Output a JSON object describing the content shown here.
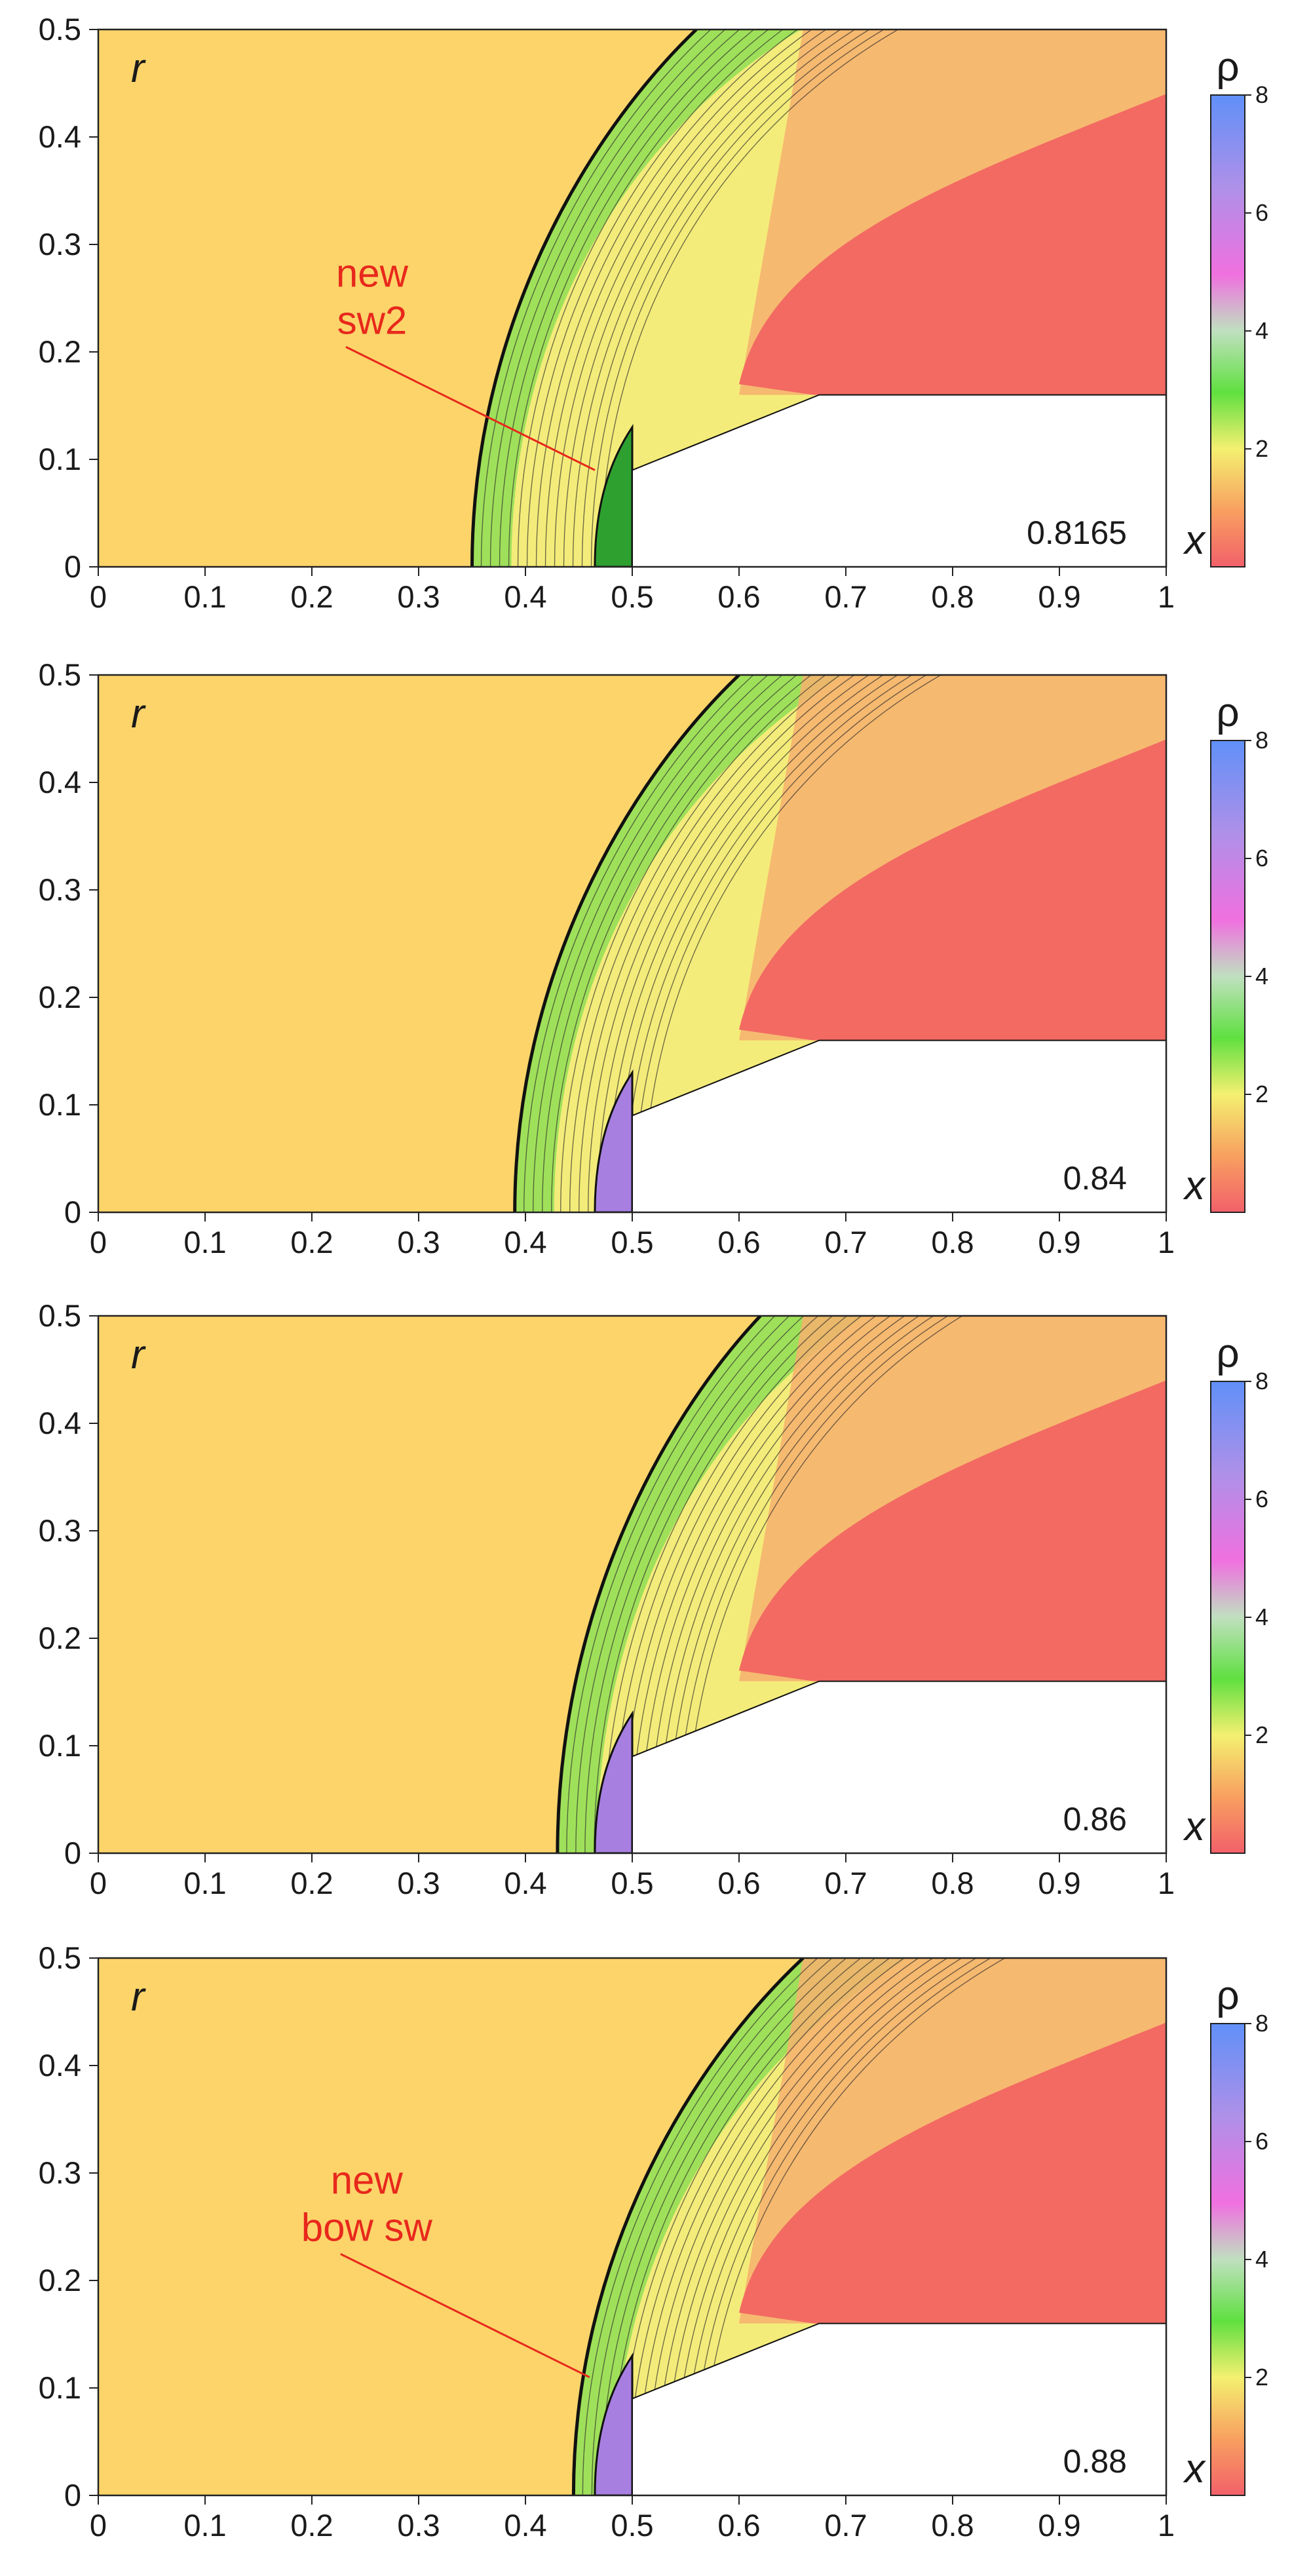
{
  "chart_data": [
    {
      "type": "contour",
      "time_label": "0.8165",
      "xlabel": "x",
      "ylabel": "r",
      "xlim": [
        0,
        1
      ],
      "ylim": [
        0,
        0.5
      ],
      "x_ticks": [
        "0",
        "0.1",
        "0.2",
        "0.3",
        "0.4",
        "0.5",
        "0.6",
        "0.7",
        "0.8",
        "0.9",
        "1"
      ],
      "y_ticks": [
        "0",
        "0.1",
        "0.2",
        "0.3",
        "0.4",
        "0.5"
      ],
      "colorbar": {
        "label": "ρ",
        "range": [
          0,
          8
        ],
        "ticks": [
          "2",
          "4",
          "6",
          "8"
        ]
      },
      "shock_front_x_at_axis": 0.35,
      "shock_front_x_at_top": 0.56,
      "max_density_region": "green",
      "annotation": {
        "lines": [
          "new",
          "sw2"
        ],
        "target_x": 0.465,
        "target_r": 0.09
      }
    },
    {
      "type": "contour",
      "time_label": "0.84",
      "xlabel": "x",
      "ylabel": "r",
      "xlim": [
        0,
        1
      ],
      "ylim": [
        0,
        0.5
      ],
      "x_ticks": [
        "0",
        "0.1",
        "0.2",
        "0.3",
        "0.4",
        "0.5",
        "0.6",
        "0.7",
        "0.8",
        "0.9",
        "1"
      ],
      "y_ticks": [
        "0",
        "0.1",
        "0.2",
        "0.3",
        "0.4",
        "0.5"
      ],
      "colorbar": {
        "label": "ρ",
        "range": [
          0,
          8
        ],
        "ticks": [
          "2",
          "4",
          "6",
          "8"
        ]
      },
      "shock_front_x_at_axis": 0.39,
      "shock_front_x_at_top": 0.6,
      "max_density_region": "purple",
      "annotation": null
    },
    {
      "type": "contour",
      "time_label": "0.86",
      "xlabel": "x",
      "ylabel": "r",
      "xlim": [
        0,
        1
      ],
      "ylim": [
        0,
        0.5
      ],
      "x_ticks": [
        "0",
        "0.1",
        "0.2",
        "0.3",
        "0.4",
        "0.5",
        "0.6",
        "0.7",
        "0.8",
        "0.9",
        "1"
      ],
      "y_ticks": [
        "0",
        "0.1",
        "0.2",
        "0.3",
        "0.4",
        "0.5"
      ],
      "colorbar": {
        "label": "ρ",
        "range": [
          0,
          8
        ],
        "ticks": [
          "2",
          "4",
          "6",
          "8"
        ]
      },
      "shock_front_x_at_axis": 0.43,
      "shock_front_x_at_top": 0.62,
      "max_density_region": "purple",
      "annotation": null
    },
    {
      "type": "contour",
      "time_label": "0.88",
      "xlabel": "x",
      "ylabel": "r",
      "xlim": [
        0,
        1
      ],
      "ylim": [
        0,
        0.5
      ],
      "x_ticks": [
        "0",
        "0.1",
        "0.2",
        "0.3",
        "0.4",
        "0.5",
        "0.6",
        "0.7",
        "0.8",
        "0.9",
        "1"
      ],
      "y_ticks": [
        "0",
        "0.1",
        "0.2",
        "0.3",
        "0.4",
        "0.5"
      ],
      "colorbar": {
        "label": "ρ",
        "range": [
          0,
          8
        ],
        "ticks": [
          "2",
          "4",
          "6",
          "8"
        ]
      },
      "shock_front_x_at_axis": 0.445,
      "shock_front_x_at_top": 0.66,
      "max_density_region": "purple",
      "annotation": {
        "lines": [
          "new",
          "bow sw"
        ],
        "target_x": 0.46,
        "target_r": 0.11
      }
    }
  ],
  "colors": {
    "ambient": "#fcd46a",
    "shell_green": "#9fe05a",
    "shell_yellow": "#f4ec7a",
    "wake_orange": "#f6b06e",
    "wake_red": "#f26a62",
    "dense_purple": "#a77fe0",
    "annotation_red": "#e8281c",
    "contour_line": "#2a2a2a"
  }
}
